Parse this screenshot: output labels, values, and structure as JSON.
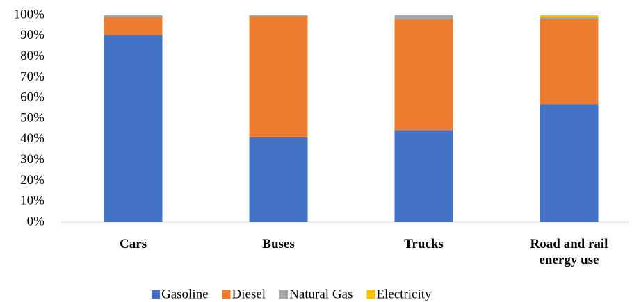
{
  "chart_data": {
    "type": "stacked_bar",
    "categories": [
      "Cars",
      "Buses",
      "Trucks",
      "Road and rail energy use"
    ],
    "series": [
      {
        "name": "Gasoline",
        "color": "#4472c4",
        "values": [
          90.5,
          41,
          44.5,
          57
        ]
      },
      {
        "name": "Diesel",
        "color": "#ed7d31",
        "values": [
          8.5,
          58.5,
          53.5,
          41
        ]
      },
      {
        "name": "Natural Gas",
        "color": "#a5a5a5",
        "values": [
          1,
          0.5,
          2,
          1
        ]
      },
      {
        "name": "Electricity",
        "color": "#ffc000",
        "values": [
          0,
          0,
          0,
          1
        ]
      }
    ],
    "ylim": [
      0,
      100
    ],
    "yticks": [
      {
        "value": 0,
        "label": "0%"
      },
      {
        "value": 10,
        "label": "10%"
      },
      {
        "value": 20,
        "label": "20%"
      },
      {
        "value": 30,
        "label": "30%"
      },
      {
        "value": 40,
        "label": "40%"
      },
      {
        "value": 50,
        "label": "50%"
      },
      {
        "value": 60,
        "label": "60%"
      },
      {
        "value": 70,
        "label": "70%"
      },
      {
        "value": 80,
        "label": "80%"
      },
      {
        "value": 90,
        "label": "90%"
      },
      {
        "value": 100,
        "label": "100%"
      }
    ],
    "grid": false,
    "legend": "bottom"
  }
}
